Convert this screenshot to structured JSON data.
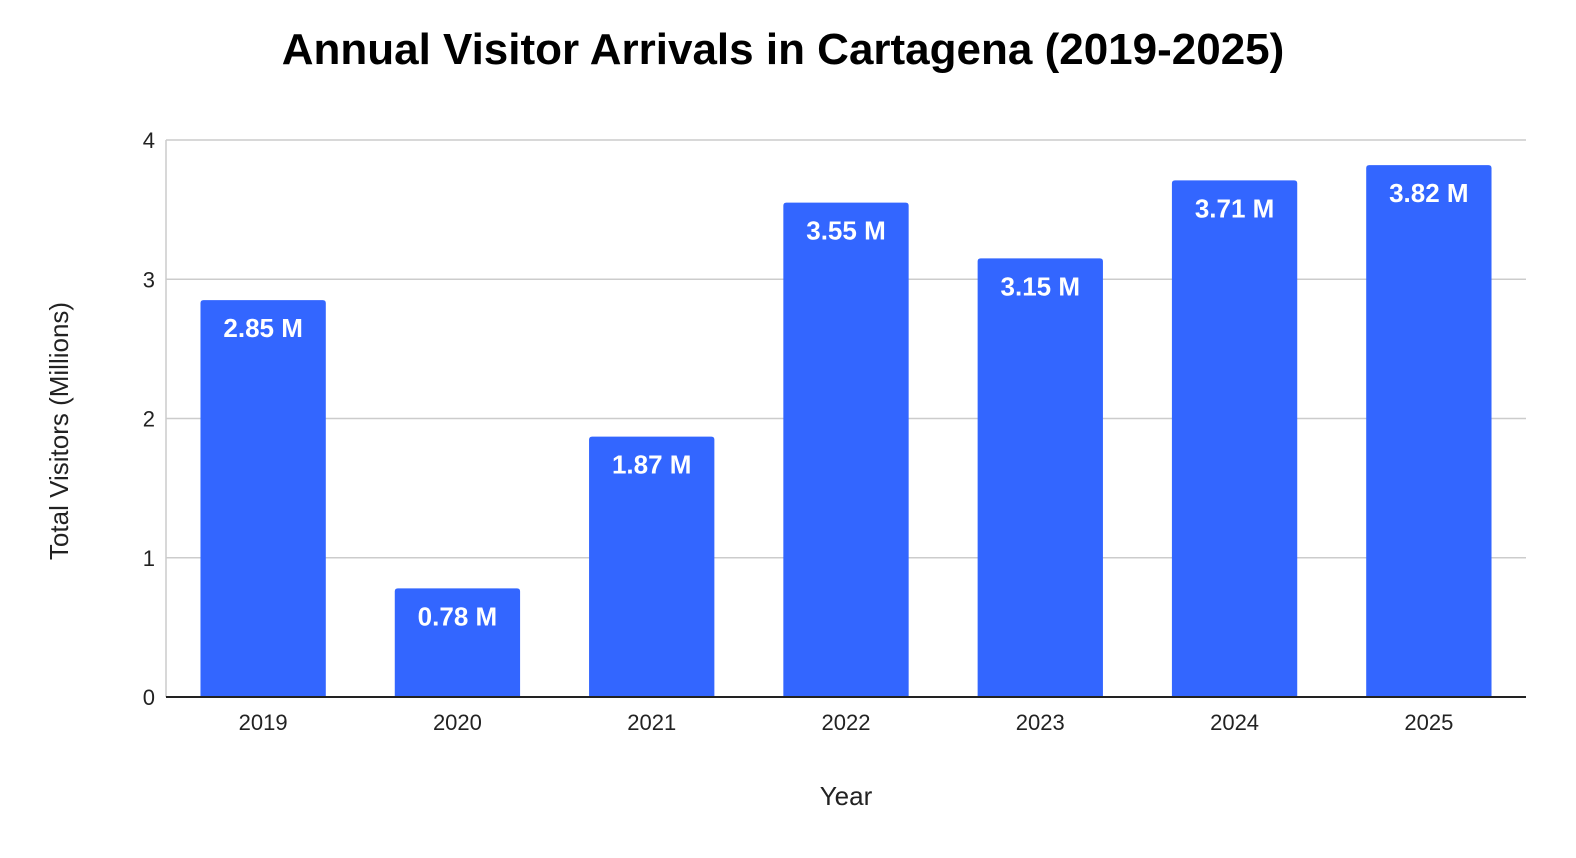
{
  "chart_data": {
    "type": "bar",
    "title": "Annual Visitor Arrivals in Cartagena (2019-2025)",
    "xlabel": "Year",
    "ylabel": "Total Visitors (Millions)",
    "categories": [
      "2019",
      "2020",
      "2021",
      "2022",
      "2023",
      "2024",
      "2025"
    ],
    "values": [
      2.85,
      0.78,
      1.87,
      3.55,
      3.15,
      3.71,
      3.82
    ],
    "data_labels": [
      "2.85 M",
      "0.78 M",
      "1.87 M",
      "3.55 M",
      "3.15 M",
      "3.71 M",
      "3.82 M"
    ],
    "ylim": [
      0,
      4
    ],
    "yticks": [
      "0",
      "1",
      "2",
      "3",
      "4"
    ],
    "grid": true,
    "legend": "none",
    "bar_color": "#3366ff"
  }
}
